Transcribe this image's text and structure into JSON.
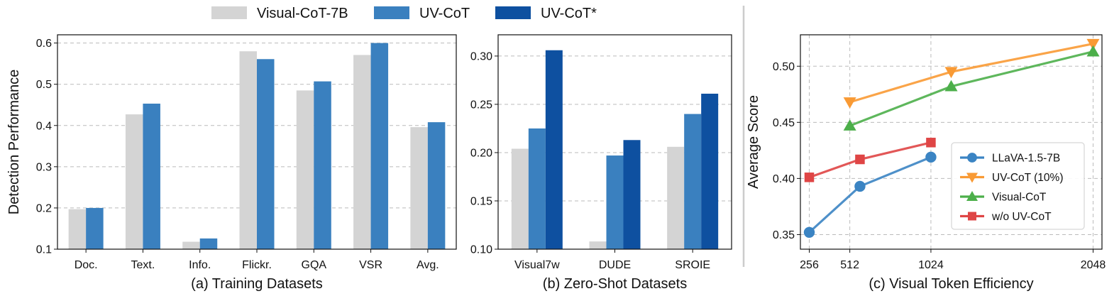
{
  "legend_top": [
    {
      "name": "Visual-CoT-7B",
      "color": "#d4d4d4"
    },
    {
      "name": "UV-CoT",
      "color": "#3a80bf"
    },
    {
      "name": "UV-CoT*",
      "color": "#0e50a0"
    }
  ],
  "chart_data": [
    {
      "type": "bar",
      "title": "(a) Training Datasets",
      "xlabel": "(a) Training Datasets",
      "ylabel": "Detection Performance",
      "ylim": [
        0.1,
        0.62
      ],
      "yticks": [
        0.1,
        0.2,
        0.3,
        0.4,
        0.5,
        0.6
      ],
      "ytick_labels": [
        "0.1",
        "0.2",
        "0.3",
        "0.4",
        "0.5",
        "0.6"
      ],
      "grid": true,
      "categories": [
        "Doc.",
        "Text.",
        "Info.",
        "Flickr.",
        "GQA",
        "VSR",
        "Avg."
      ],
      "series": [
        {
          "name": "Visual-CoT-7B",
          "color": "#d4d4d4",
          "values": [
            0.197,
            0.427,
            0.118,
            0.58,
            0.485,
            0.571,
            0.396
          ]
        },
        {
          "name": "UV-CoT",
          "color": "#3a80bf",
          "values": [
            0.2,
            0.453,
            0.126,
            0.561,
            0.507,
            0.6,
            0.408
          ]
        }
      ]
    },
    {
      "type": "bar",
      "title": "(b) Zero-Shot Datasets",
      "xlabel": "(b) Zero-Shot Datasets",
      "ylabel": "",
      "ylim": [
        0.1,
        0.322
      ],
      "yticks": [
        0.1,
        0.15,
        0.2,
        0.25,
        0.3
      ],
      "ytick_labels": [
        "0.10",
        "0.15",
        "0.20",
        "0.25",
        "0.30"
      ],
      "grid": true,
      "categories": [
        "Visual7w",
        "DUDE",
        "SROIE"
      ],
      "series": [
        {
          "name": "Visual-CoT-7B",
          "color": "#d4d4d4",
          "values": [
            0.204,
            0.108,
            0.206
          ]
        },
        {
          "name": "UV-CoT",
          "color": "#3a80bf",
          "values": [
            0.225,
            0.197,
            0.24
          ]
        },
        {
          "name": "UV-CoT*",
          "color": "#0e50a0",
          "values": [
            0.306,
            0.213,
            0.261
          ]
        }
      ]
    },
    {
      "type": "line",
      "title": "(c) Visual Token Efficiency",
      "xlabel": "(c) Visual Token Efficiency",
      "ylabel": "Average Score",
      "xlim": [
        200,
        2104
      ],
      "ylim": [
        0.337,
        0.528
      ],
      "xticks": [
        256,
        512,
        1024,
        2048
      ],
      "xtick_labels": [
        "256",
        "512",
        "1024",
        "2048"
      ],
      "yticks": [
        0.35,
        0.4,
        0.45,
        0.5
      ],
      "ytick_labels": [
        "0.35",
        "0.40",
        "0.45",
        "0.50"
      ],
      "grid": true,
      "legend_position": "lower-right",
      "series": [
        {
          "name": "LLaVA-1.5-7B",
          "color": "#3b84c3",
          "marker": "circle",
          "x": [
            256,
            576,
            1024
          ],
          "y": [
            0.352,
            0.393,
            0.419
          ]
        },
        {
          "name": "UV-CoT (10%)",
          "color": "#f99a34",
          "marker": "triangle-down",
          "x": [
            512,
            1152,
            2048
          ],
          "y": [
            0.468,
            0.495,
            0.52
          ]
        },
        {
          "name": "Visual-CoT",
          "color": "#4caf4a",
          "marker": "triangle-up",
          "x": [
            512,
            1152,
            2048
          ],
          "y": [
            0.447,
            0.482,
            0.513
          ]
        },
        {
          "name": "w/o UV-CoT",
          "color": "#df4545",
          "marker": "square",
          "x": [
            256,
            576,
            1024
          ],
          "y": [
            0.401,
            0.417,
            0.432
          ]
        }
      ]
    }
  ]
}
